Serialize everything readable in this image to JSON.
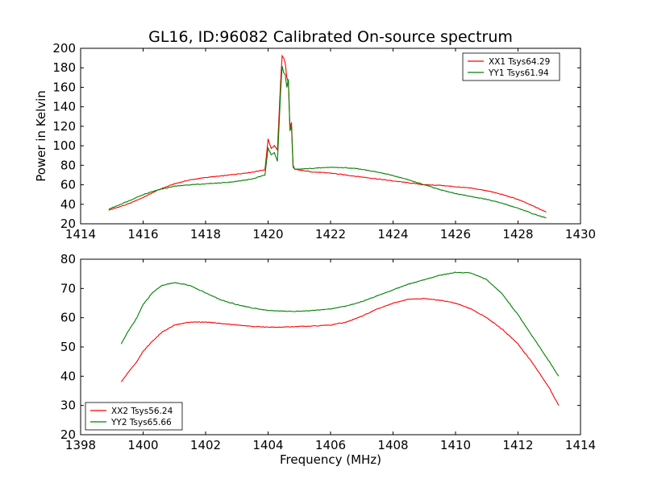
{
  "colors": {
    "red": "#ff0000",
    "green": "#008000"
  },
  "chart_data": [
    {
      "type": "line",
      "title": "GL16, ID:96082 Calibrated On-source spectrum",
      "xlabel": "",
      "ylabel": "Power in Kelvin",
      "xlim": [
        1414,
        1430
      ],
      "ylim": [
        20,
        200
      ],
      "xticks": [
        "1414",
        "1416",
        "1418",
        "1420",
        "1422",
        "1424",
        "1426",
        "1428",
        "1430"
      ],
      "yticks": [
        "20",
        "40",
        "60",
        "80",
        "100",
        "120",
        "140",
        "160",
        "180",
        "200"
      ],
      "legend_position": "top-right",
      "series": [
        {
          "name": "XX1 Tsys64.29",
          "color": "#ff0000",
          "points": [
            [
              1414.9,
              34
            ],
            [
              1415.5,
              40
            ],
            [
              1416.0,
              47
            ],
            [
              1416.5,
              55
            ],
            [
              1417.0,
              61
            ],
            [
              1417.5,
              65
            ],
            [
              1418.0,
              67.5
            ],
            [
              1418.5,
              69
            ],
            [
              1419.0,
              71
            ],
            [
              1419.5,
              73
            ],
            [
              1419.9,
              75.5
            ],
            [
              1420.0,
              107
            ],
            [
              1420.1,
              97
            ],
            [
              1420.2,
              100
            ],
            [
              1420.3,
              96
            ],
            [
              1420.4,
              165
            ],
            [
              1420.45,
              192
            ],
            [
              1420.5,
              190
            ],
            [
              1420.55,
              185
            ],
            [
              1420.6,
              170
            ],
            [
              1420.65,
              165
            ],
            [
              1420.7,
              118
            ],
            [
              1420.75,
              124
            ],
            [
              1420.8,
              80
            ],
            [
              1420.85,
              76
            ],
            [
              1421.0,
              75
            ],
            [
              1421.5,
              73
            ],
            [
              1422.0,
              72
            ],
            [
              1422.5,
              70
            ],
            [
              1423.0,
              68
            ],
            [
              1423.5,
              66
            ],
            [
              1424.0,
              64
            ],
            [
              1424.5,
              62
            ],
            [
              1425.0,
              60
            ],
            [
              1425.5,
              59.5
            ],
            [
              1426.0,
              58
            ],
            [
              1426.5,
              56.5
            ],
            [
              1427.0,
              54
            ],
            [
              1427.5,
              50
            ],
            [
              1428.0,
              45
            ],
            [
              1428.5,
              38
            ],
            [
              1428.9,
              32
            ]
          ]
        },
        {
          "name": "YY1 Tsys61.94",
          "color": "#008000",
          "points": [
            [
              1414.9,
              35
            ],
            [
              1415.5,
              43
            ],
            [
              1416.0,
              50
            ],
            [
              1416.5,
              55
            ],
            [
              1417.0,
              58.5
            ],
            [
              1417.5,
              60
            ],
            [
              1418.0,
              61
            ],
            [
              1418.5,
              62
            ],
            [
              1419.0,
              63.5
            ],
            [
              1419.5,
              66
            ],
            [
              1419.9,
              70
            ],
            [
              1420.0,
              98
            ],
            [
              1420.1,
              91
            ],
            [
              1420.2,
              93
            ],
            [
              1420.3,
              84
            ],
            [
              1420.4,
              155
            ],
            [
              1420.45,
              182
            ],
            [
              1420.5,
              175
            ],
            [
              1420.55,
              173
            ],
            [
              1420.6,
              160
            ],
            [
              1420.65,
              168
            ],
            [
              1420.7,
              115
            ],
            [
              1420.75,
              120
            ],
            [
              1420.8,
              78
            ],
            [
              1420.85,
              76
            ],
            [
              1421.0,
              76
            ],
            [
              1421.5,
              77
            ],
            [
              1422.0,
              78
            ],
            [
              1422.5,
              77.5
            ],
            [
              1423.0,
              76
            ],
            [
              1423.5,
              73
            ],
            [
              1424.0,
              69.5
            ],
            [
              1424.5,
              65
            ],
            [
              1425.0,
              60
            ],
            [
              1425.5,
              55
            ],
            [
              1426.0,
              51
            ],
            [
              1426.5,
              48
            ],
            [
              1427.0,
              45
            ],
            [
              1427.5,
              41
            ],
            [
              1428.0,
              36
            ],
            [
              1428.5,
              30
            ],
            [
              1428.9,
              26
            ]
          ]
        }
      ]
    },
    {
      "type": "line",
      "title": "",
      "xlabel": "Frequency (MHz)",
      "ylabel": "",
      "xlim": [
        1398,
        1414
      ],
      "ylim": [
        20,
        80
      ],
      "xticks": [
        "1398",
        "1400",
        "1402",
        "1404",
        "1406",
        "1408",
        "1410",
        "1412",
        "1414"
      ],
      "yticks": [
        "20",
        "30",
        "40",
        "50",
        "60",
        "70",
        "80"
      ],
      "legend_position": "bottom-left",
      "series": [
        {
          "name": "XX2 Tsys56.24",
          "color": "#ff0000",
          "points": [
            [
              1399.3,
              38
            ],
            [
              1399.5,
              41
            ],
            [
              1399.8,
              45
            ],
            [
              1400.0,
              48.5
            ],
            [
              1400.3,
              52
            ],
            [
              1400.6,
              55
            ],
            [
              1401.0,
              57.5
            ],
            [
              1401.5,
              58.5
            ],
            [
              1402.0,
              58.5
            ],
            [
              1402.5,
              58
            ],
            [
              1403.0,
              57.5
            ],
            [
              1403.5,
              57
            ],
            [
              1404.0,
              56.8
            ],
            [
              1404.5,
              56.8
            ],
            [
              1405.0,
              57
            ],
            [
              1405.5,
              57.2
            ],
            [
              1406.0,
              57.5
            ],
            [
              1406.5,
              58.5
            ],
            [
              1407.0,
              60.5
            ],
            [
              1407.5,
              63
            ],
            [
              1408.0,
              65
            ],
            [
              1408.5,
              66.3
            ],
            [
              1409.0,
              66.5
            ],
            [
              1409.5,
              66
            ],
            [
              1410.0,
              65
            ],
            [
              1410.5,
              63
            ],
            [
              1411.0,
              60
            ],
            [
              1411.5,
              56
            ],
            [
              1412.0,
              51
            ],
            [
              1412.5,
              44
            ],
            [
              1413.0,
              36
            ],
            [
              1413.3,
              30
            ]
          ]
        },
        {
          "name": "YY2 Tsys65.66",
          "color": "#008000",
          "points": [
            [
              1399.3,
              51
            ],
            [
              1399.5,
              55
            ],
            [
              1399.8,
              60
            ],
            [
              1400.0,
              64.5
            ],
            [
              1400.3,
              68.5
            ],
            [
              1400.6,
              71
            ],
            [
              1401.0,
              72
            ],
            [
              1401.5,
              71
            ],
            [
              1402.0,
              68.5
            ],
            [
              1402.5,
              66
            ],
            [
              1403.0,
              64.5
            ],
            [
              1403.5,
              63.3
            ],
            [
              1404.0,
              62.5
            ],
            [
              1404.5,
              62.2
            ],
            [
              1405.0,
              62.2
            ],
            [
              1405.5,
              62.5
            ],
            [
              1406.0,
              63
            ],
            [
              1406.5,
              64
            ],
            [
              1407.0,
              65.5
            ],
            [
              1407.5,
              67.5
            ],
            [
              1408.0,
              69.5
            ],
            [
              1408.5,
              71.5
            ],
            [
              1409.0,
              73
            ],
            [
              1409.5,
              74.5
            ],
            [
              1410.0,
              75.5
            ],
            [
              1410.5,
              75.3
            ],
            [
              1411.0,
              73
            ],
            [
              1411.5,
              68
            ],
            [
              1412.0,
              61
            ],
            [
              1412.5,
              53
            ],
            [
              1413.0,
              45
            ],
            [
              1413.3,
              40
            ]
          ]
        }
      ]
    }
  ]
}
